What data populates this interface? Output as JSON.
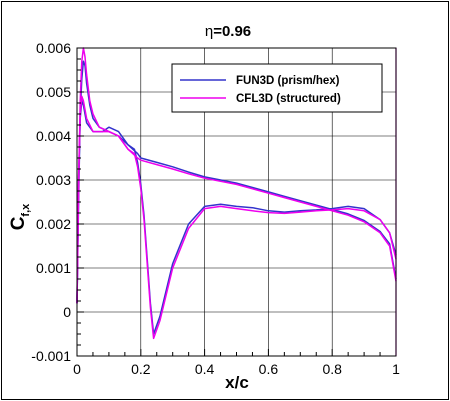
{
  "chart_data": {
    "type": "line",
    "title_symbol": "η",
    "title_value": "=0.96",
    "xlabel": "x/c",
    "ylabel_main": "C",
    "ylabel_sub": "f,x",
    "xlim": [
      0,
      1
    ],
    "ylim": [
      -0.001,
      0.006
    ],
    "xticks": [
      0,
      0.2,
      0.4,
      0.6,
      0.8,
      1
    ],
    "xtick_labels": [
      "0",
      "0.2",
      "0.4",
      "0.6",
      "0.8",
      "1"
    ],
    "yticks": [
      -0.001,
      0,
      0.001,
      0.002,
      0.003,
      0.004,
      0.005,
      0.006
    ],
    "ytick_labels": [
      "-0.001",
      "0",
      "0.001",
      "0.002",
      "0.003",
      "0.004",
      "0.005",
      "0.006"
    ],
    "grid": true,
    "legend_position": "top-right",
    "series": [
      {
        "name": "FUN3D (prism/hex)",
        "color": "#3333cc",
        "segments": [
          {
            "x": [
              0.0,
              0.005,
              0.01,
              0.015,
              0.02,
              0.025,
              0.03,
              0.04,
              0.05,
              0.07,
              0.1,
              0.13,
              0.16,
              0.18,
              0.19,
              0.2,
              0.21,
              0.22,
              0.23,
              0.24,
              0.26,
              0.3,
              0.35,
              0.4,
              0.45,
              0.5,
              0.55,
              0.6,
              0.65,
              0.7,
              0.75,
              0.8,
              0.85,
              0.9,
              0.95,
              0.98,
              1.0
            ],
            "y": [
              0.0002,
              0.0025,
              0.0045,
              0.0053,
              0.0057,
              0.0056,
              0.0052,
              0.0047,
              0.0044,
              0.0042,
              0.0041,
              0.004,
              0.0038,
              0.0037,
              0.0034,
              0.0029,
              0.0022,
              0.0012,
              0.0002,
              -0.0005,
              -0.0001,
              0.0011,
              0.002,
              0.0024,
              0.00245,
              0.0024,
              0.00237,
              0.0023,
              0.00227,
              0.0023,
              0.00232,
              0.00235,
              0.0024,
              0.00235,
              0.0021,
              0.0018,
              0.0013
            ]
          },
          {
            "x": [
              0.0,
              0.005,
              0.01,
              0.015,
              0.02,
              0.03,
              0.05,
              0.08,
              0.1,
              0.13,
              0.16,
              0.19,
              0.2,
              0.25,
              0.3,
              0.35,
              0.4,
              0.45,
              0.5,
              0.55,
              0.6,
              0.65,
              0.7,
              0.75,
              0.8,
              0.85,
              0.9,
              0.95,
              0.98,
              1.0
            ],
            "y": [
              0.0002,
              0.003,
              0.0044,
              0.0048,
              0.0047,
              0.0043,
              0.0041,
              0.0041,
              0.0042,
              0.0041,
              0.0038,
              0.0036,
              0.0035,
              0.0034,
              0.0033,
              0.00318,
              0.00307,
              0.003,
              0.00293,
              0.00283,
              0.00273,
              0.00263,
              0.00253,
              0.00243,
              0.00233,
              0.00223,
              0.00208,
              0.00183,
              0.00155,
              0.00075
            ]
          }
        ]
      },
      {
        "name": "CFL3D (structured)",
        "color": "#ee00ee",
        "segments": [
          {
            "x": [
              0.0,
              0.005,
              0.01,
              0.015,
              0.02,
              0.025,
              0.03,
              0.04,
              0.05,
              0.07,
              0.1,
              0.13,
              0.16,
              0.18,
              0.19,
              0.2,
              0.21,
              0.22,
              0.23,
              0.24,
              0.26,
              0.3,
              0.35,
              0.4,
              0.45,
              0.5,
              0.55,
              0.6,
              0.65,
              0.7,
              0.75,
              0.8,
              0.85,
              0.9,
              0.95,
              0.98,
              1.0
            ],
            "y": [
              0.0002,
              0.0028,
              0.0048,
              0.0057,
              0.006,
              0.0058,
              0.0054,
              0.0048,
              0.0045,
              0.0042,
              0.0041,
              0.004,
              0.0037,
              0.0036,
              0.0033,
              0.0028,
              0.0021,
              0.0011,
              0.0001,
              -0.0006,
              -0.0002,
              0.001,
              0.0019,
              0.00235,
              0.0024,
              0.00235,
              0.0023,
              0.00226,
              0.00224,
              0.00227,
              0.0023,
              0.00232,
              0.00235,
              0.0023,
              0.0021,
              0.0018,
              0.0012
            ]
          },
          {
            "x": [
              0.0,
              0.005,
              0.01,
              0.015,
              0.02,
              0.03,
              0.05,
              0.08,
              0.1,
              0.13,
              0.16,
              0.19,
              0.2,
              0.25,
              0.3,
              0.35,
              0.4,
              0.45,
              0.5,
              0.55,
              0.6,
              0.65,
              0.7,
              0.75,
              0.8,
              0.85,
              0.9,
              0.95,
              0.98,
              1.0
            ],
            "y": [
              0.0002,
              0.0031,
              0.0045,
              0.0049,
              0.0048,
              0.0044,
              0.0041,
              0.0041,
              0.0041,
              0.004,
              0.0037,
              0.0035,
              0.00345,
              0.00335,
              0.00325,
              0.00314,
              0.00304,
              0.00297,
              0.0029,
              0.0028,
              0.0027,
              0.0026,
              0.0025,
              0.0024,
              0.0023,
              0.0022,
              0.00205,
              0.0018,
              0.0015,
              0.0007
            ]
          }
        ]
      }
    ]
  }
}
